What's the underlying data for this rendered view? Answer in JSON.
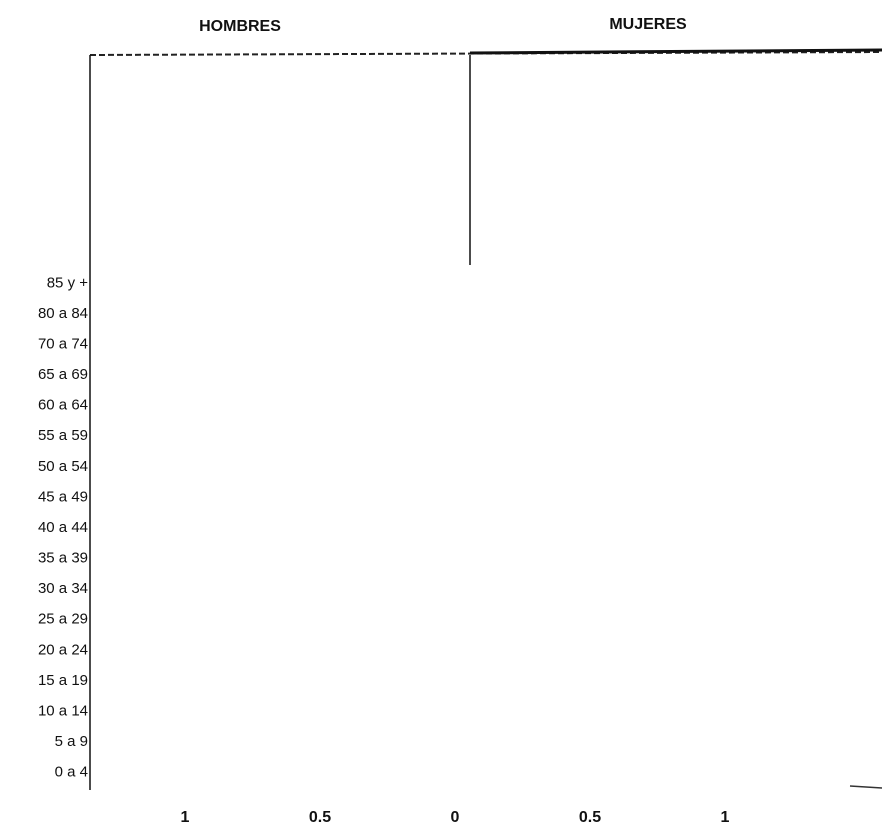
{
  "chart_data": {
    "type": "pyramid",
    "left_label": "HOMBRES",
    "right_label": "MUJERES",
    "categories": [
      "85 y +",
      "80 a 84",
      "70 a 74",
      "65 a 69",
      "60 a 64",
      "55 a 59",
      "50 a 54",
      "45 a 49",
      "40 a 44",
      "35 a 39",
      "30 a 34",
      "25 a 29",
      "20 a 24",
      "15 a 19",
      "10 a 14",
      "5 a 9",
      "0 a 4"
    ],
    "xlim": [
      -1.4,
      1.4
    ],
    "xticks": [
      {
        "value": -1,
        "label": "1"
      },
      {
        "value": -0.5,
        "label": "0.5"
      },
      0,
      0.5,
      1
    ]
  }
}
